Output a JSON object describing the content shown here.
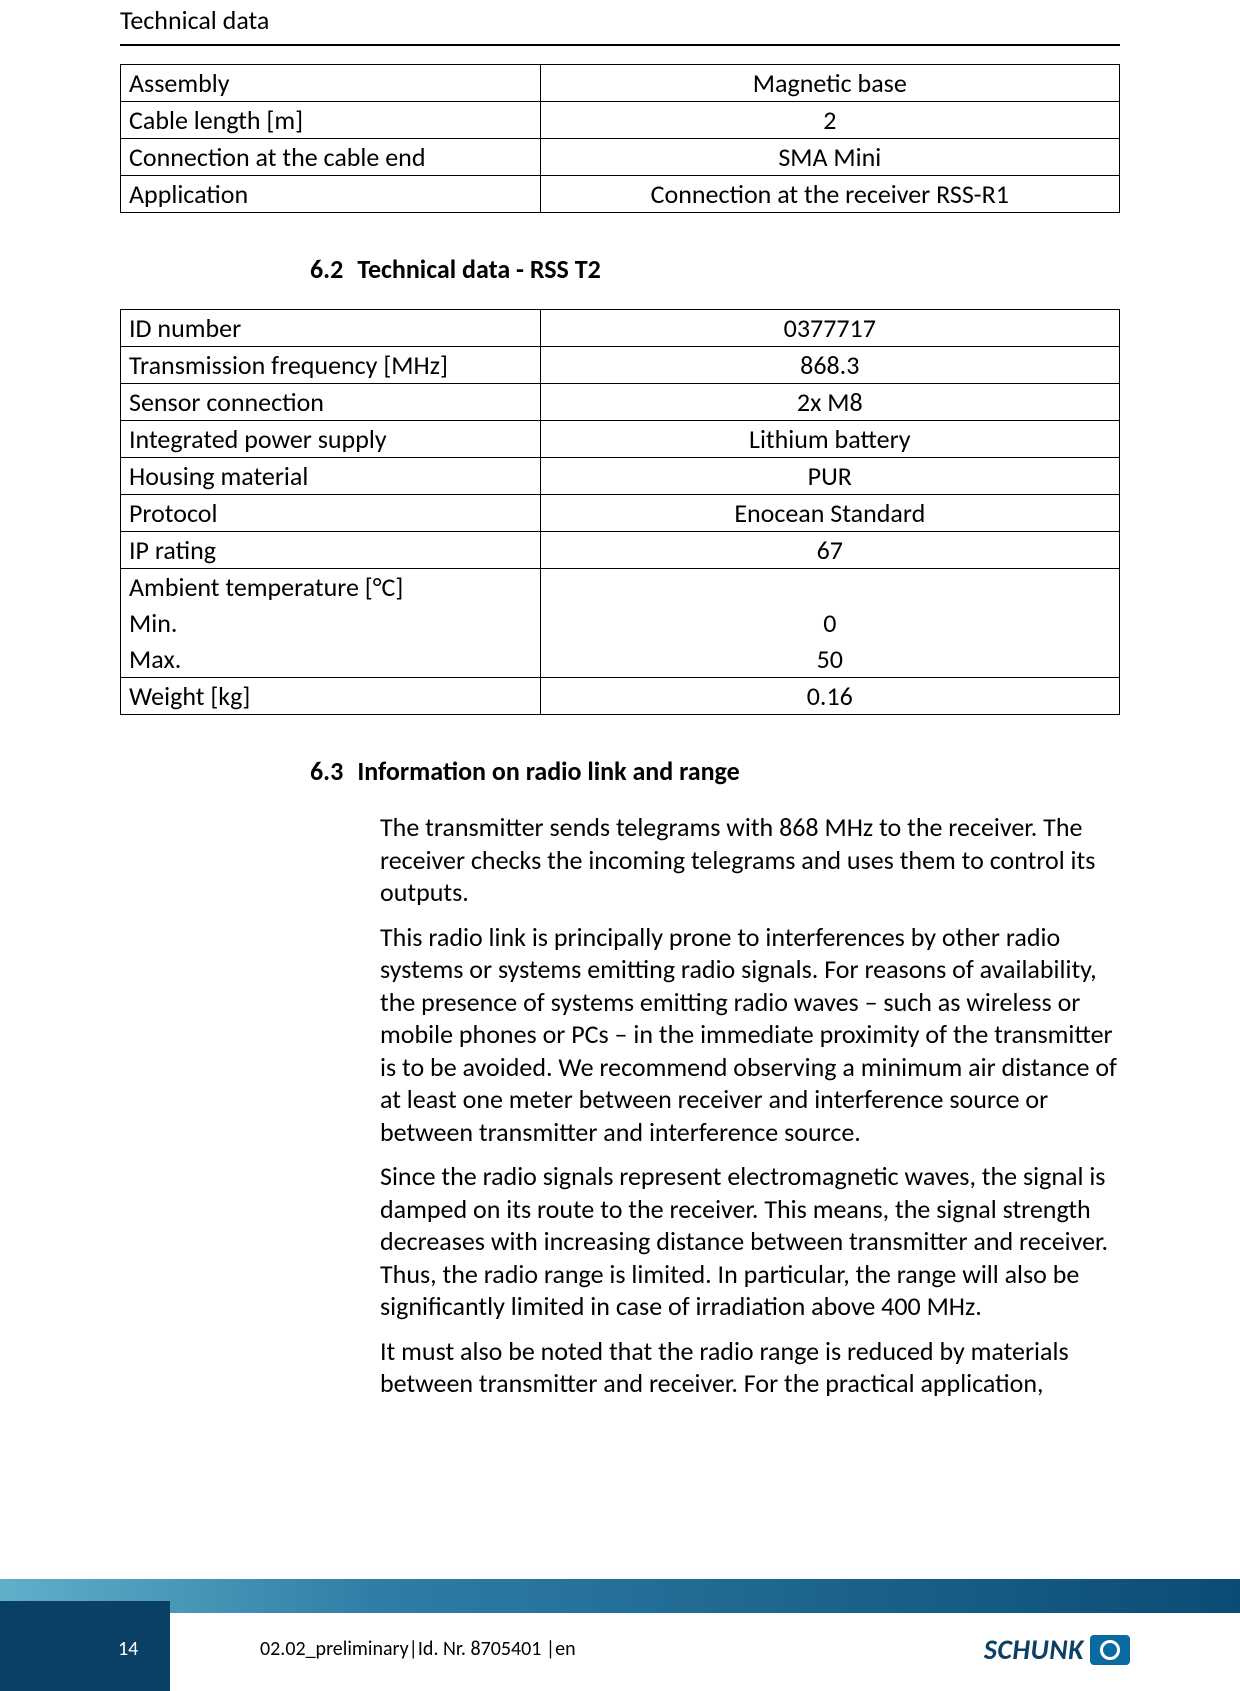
{
  "header": {
    "title": "Technical data"
  },
  "table1": {
    "rows": [
      {
        "label": "Assembly",
        "value": "Magnetic base"
      },
      {
        "label": "Cable length [m]",
        "value": "2"
      },
      {
        "label": "Connection at the cable end",
        "value": "SMA Mini"
      },
      {
        "label": "Application",
        "value": "Connection at the receiver RSS-R1"
      }
    ]
  },
  "section62": {
    "number": "6.2",
    "title": "Technical data - RSS T2"
  },
  "table2": {
    "rows": [
      {
        "label": "ID number",
        "value": "0377717",
        "style": "normal"
      },
      {
        "label": "Transmission frequency [MHz]",
        "value": "868.3",
        "style": "normal"
      },
      {
        "label": "Sensor connection",
        "value": "2x M8",
        "style": "normal"
      },
      {
        "label": "Integrated power supply",
        "value": "Lithium battery",
        "style": "normal"
      },
      {
        "label": "Housing material",
        "value": "PUR",
        "style": "normal"
      },
      {
        "label": "Protocol",
        "value": "Enocean Standard",
        "style": "normal"
      },
      {
        "label": "IP rating",
        "value": "67",
        "style": "normal"
      },
      {
        "label": "Ambient temperature [°C]",
        "value": "",
        "style": "nb-bottom"
      },
      {
        "label": "Min.",
        "value": "0",
        "style": "nb"
      },
      {
        "label": "Max.",
        "value": "50",
        "style": "nb-top"
      },
      {
        "label": "Weight [kg]",
        "value": "0.16",
        "style": "normal"
      }
    ]
  },
  "section63": {
    "number": "6.3",
    "title": "Information on radio link and range"
  },
  "body": {
    "p1": "The transmitter sends telegrams with 868 MHz to the receiver. The receiver checks the incoming telegrams and uses them to control its outputs.",
    "p2": "This radio link is principally prone to interferences by other radio systems or systems emitting radio signals. For reasons of availabil­ity, the presence of systems emitting radio waves – such as wire­less or mobile phones or PCs – in the immediate proximity of the transmitter is to be avoided. We recommend observing a mini­mum air distance of at least one meter between receiver and in­terference source or between transmitter and interference source.",
    "p3": "Since the radio signals represent electromagnetic waves, the signal is damped on its route to the receiver. This means, the signal strength decreases with increasing distance between transmitter and receiver. Thus, the radio range is limited. In particular, the range will also be significantly limited in case of irradiation above 400 MHz.",
    "p4": "It must also be noted that the radio range is reduced by materials between transmitter and receiver. For the practical application,"
  },
  "footer": {
    "page": "14",
    "id": "02.02_preliminary|Id. Nr. 8705401 |en",
    "logo_text": "SCHUNK"
  },
  "colors": {
    "footer_dark": "#0a3f66",
    "footer_gradient_from": "#5fb0c9",
    "footer_gradient_to": "#0a4c75"
  }
}
